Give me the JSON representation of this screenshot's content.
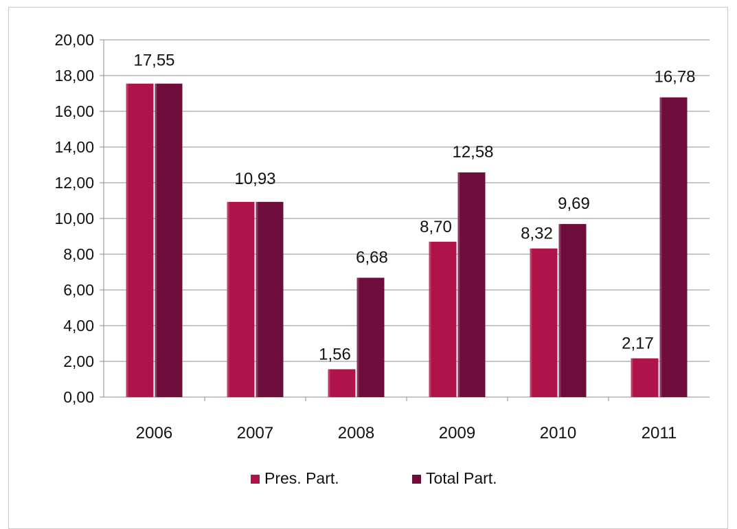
{
  "chart_data": {
    "type": "bar",
    "categories": [
      "2006",
      "2007",
      "2008",
      "2009",
      "2010",
      "2011"
    ],
    "series": [
      {
        "name": "Pres. Part.",
        "values": [
          17.55,
          10.93,
          1.56,
          8.7,
          8.32,
          2.17
        ],
        "labels": [
          null,
          null,
          "1,56",
          "8,70",
          "8,32",
          "2,17"
        ],
        "color": "#b0124a"
      },
      {
        "name": "Total Part.",
        "values": [
          17.55,
          10.93,
          6.68,
          12.58,
          9.69,
          16.78
        ],
        "labels": [
          "17,55",
          "10,93",
          "6,68",
          "12,58",
          "9,69",
          "16,78"
        ],
        "color": "#6e0d3c"
      }
    ],
    "yticks": [
      "0,00",
      "2,00",
      "4,00",
      "6,00",
      "8,00",
      "10,00",
      "12,00",
      "14,00",
      "16,00",
      "18,00",
      "20,00"
    ],
    "ylim": [
      0,
      20
    ],
    "grid": true,
    "legend_position": "bottom"
  }
}
